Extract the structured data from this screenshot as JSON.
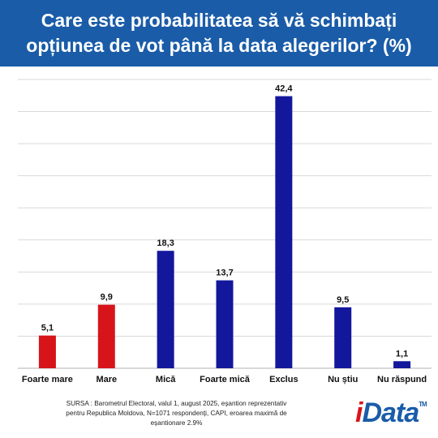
{
  "chart_data": {
    "type": "bar",
    "title": "Care este probabilitatea să vă schimbați opțiunea de vot până la data alegerilor? (%)",
    "categories": [
      "Foarte mare",
      "Mare",
      "Mică",
      "Foarte mică",
      "Exclus",
      "Nu știu",
      "Nu răspund"
    ],
    "values": [
      5.1,
      9.9,
      18.3,
      13.7,
      42.4,
      9.5,
      1.1
    ],
    "value_labels": [
      "5,1",
      "9,9",
      "18,3",
      "13,7",
      "42,4",
      "9,5",
      "1,1"
    ],
    "bar_colors": [
      "#d7141a",
      "#d7141a",
      "#13179c",
      "#13179c",
      "#13179c",
      "#13179c",
      "#13179c"
    ],
    "ylim": [
      0,
      45
    ],
    "grid": true,
    "xlabel": "",
    "ylabel": ""
  },
  "source": "SURSA : Barometrul Electoral, valul 1, august 2025, eșantion reprezentativ pentru Republica Moldova, N=1071 respondenți, CAPI, eroarea maximă de eșantionare 2.9%",
  "logo": {
    "i": "i",
    "rest": "Data",
    "tm": "TM"
  },
  "colors": {
    "title_bg": "#1a5ca8",
    "grid": "#d9d9d9",
    "axis": "#b0b0b0"
  }
}
